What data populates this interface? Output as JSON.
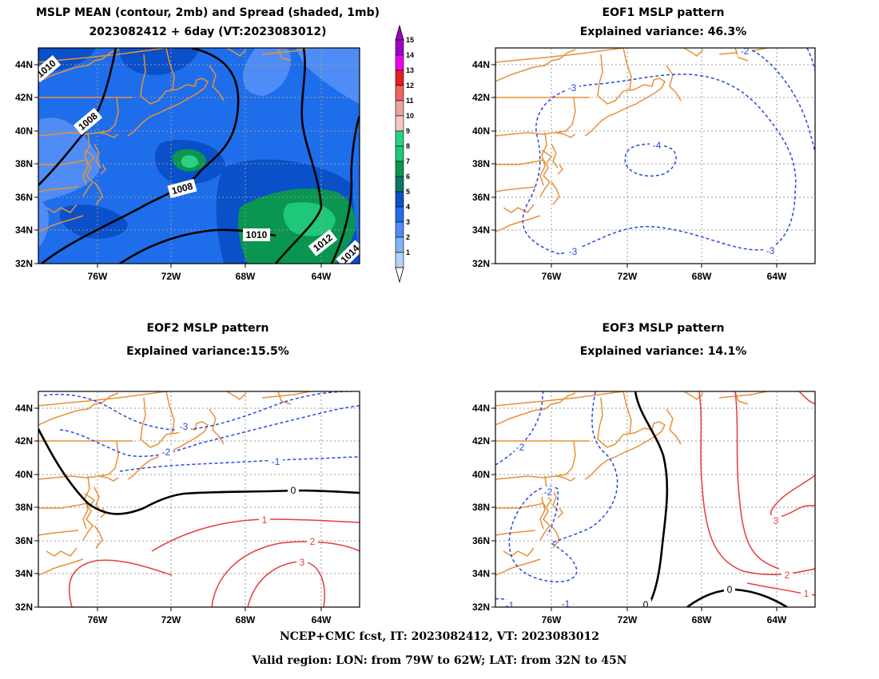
{
  "panels": {
    "mean": {
      "title1": "MSLP MEAN (contour, 2mb) and Spread (shaded, 1mb)",
      "title2": "2023082412 + 6day (VT:2023083012)",
      "contour_labels": [
        "1008",
        "1008",
        "1010",
        "1012",
        "1014",
        "1010"
      ]
    },
    "eof1": {
      "title1": "EOF1 MSLP pattern",
      "title2": "Explained variance: 46.3%",
      "contour_labels": [
        "-2",
        "-3",
        "-4",
        "-3",
        "-3"
      ]
    },
    "eof2": {
      "title1": "EOF2 MSLP pattern",
      "title2": "Explained variance:15.5%",
      "contour_labels": [
        "-3",
        "-2",
        "-1",
        "0",
        "1",
        "2",
        "3"
      ]
    },
    "eof3": {
      "title1": "EOF3 MSLP pattern",
      "title2": "Explained variance: 14.1%",
      "contour_labels": [
        "-2",
        "-2",
        "-1",
        "-1",
        "0",
        "0",
        "3",
        "2",
        "1"
      ]
    }
  },
  "axes": {
    "lat_ticks": [
      "44N",
      "42N",
      "40N",
      "38N",
      "36N",
      "34N",
      "32N"
    ],
    "lon_ticks": [
      "76W",
      "72W",
      "68W",
      "64W"
    ]
  },
  "colorbar": {
    "levels": [
      "15",
      "14",
      "13",
      "12",
      "11",
      "10",
      "9",
      "8",
      "7",
      "6",
      "5",
      "4",
      "3",
      "2",
      "1"
    ],
    "colors": [
      "#a000c8",
      "#f000f0",
      "#e61e1e",
      "#f06464",
      "#f0a0a0",
      "#f5c8c8",
      "#28d282",
      "#1ec878",
      "#0a9650",
      "#0a7864",
      "#0a50c8",
      "#1e6eeb",
      "#508cf5",
      "#82b4fa",
      "#b4d2fa"
    ]
  },
  "colors": {
    "coast": "#e8913a",
    "negative": "#2848e0",
    "positive": "#e83c3c",
    "zero": "#000000"
  },
  "footer": {
    "line1": "NCEP+CMC fcst, IT: 2023082412, VT: 2023083012",
    "line2": "Valid region: LON: from 79W to 62W; LAT: from 32N to 45N"
  }
}
